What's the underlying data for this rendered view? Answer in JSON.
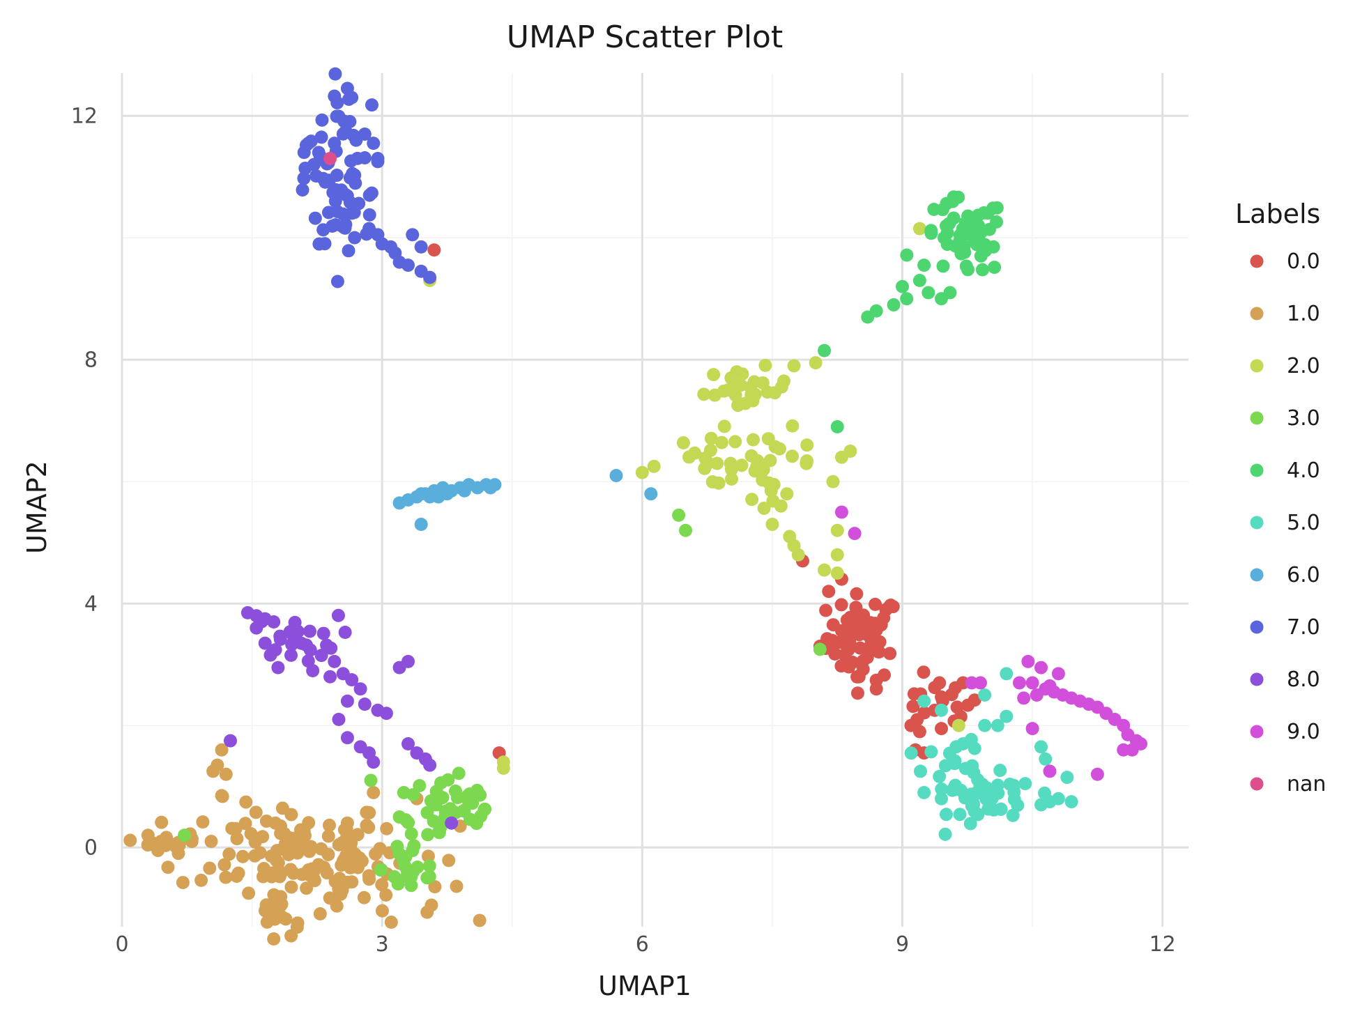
{
  "chart_data": {
    "type": "scatter",
    "title": "UMAP Scatter Plot",
    "xlabel": "UMAP1",
    "ylabel": "UMAP2",
    "xlim": [
      0,
      12.3
    ],
    "ylim": [
      -1.3,
      12.7
    ],
    "x_ticks": [
      "0",
      "3",
      "6",
      "9",
      "12"
    ],
    "y_ticks": [
      "0",
      "4",
      "8",
      "12"
    ],
    "grid": true,
    "legend": {
      "title": "Labels",
      "position": "right"
    },
    "series": [
      {
        "name": "0.0",
        "color": "#d9544d",
        "clusters": [
          {
            "cx": 8.55,
            "cy": 3.45,
            "rx": 0.3,
            "ry": 0.5,
            "n": 60
          },
          {
            "cx": 9.4,
            "cy": 2.35,
            "rx": 0.35,
            "ry": 0.3,
            "n": 18
          }
        ],
        "points": [
          [
            7.85,
            4.7
          ],
          [
            8.15,
            4.2
          ],
          [
            8.3,
            4.4
          ],
          [
            8.05,
            3.3
          ],
          [
            8.7,
            2.6
          ],
          [
            9.15,
            1.6
          ],
          [
            9.2,
            1.9
          ],
          [
            8.5,
            2.8
          ],
          [
            9.1,
            2.0
          ],
          [
            9.7,
            2.7
          ],
          [
            4.35,
            1.55
          ],
          [
            3.6,
            9.8
          ],
          [
            9.25,
            1.55
          ],
          [
            9.45,
            1.95
          ]
        ]
      },
      {
        "name": "1.0",
        "color": "#d4a155",
        "clusters": [
          {
            "cx": 1.9,
            "cy": 0.0,
            "rx": 0.9,
            "ry": 0.55,
            "n": 95
          },
          {
            "cx": 2.6,
            "cy": -0.5,
            "rx": 0.8,
            "ry": 0.5,
            "n": 50
          },
          {
            "cx": 1.8,
            "cy": -1.05,
            "rx": 0.25,
            "ry": 0.2,
            "n": 14
          },
          {
            "cx": 0.5,
            "cy": 0.1,
            "rx": 0.2,
            "ry": 0.1,
            "n": 12
          }
        ],
        "points": [
          [
            1.15,
            1.6
          ],
          [
            1.1,
            1.35
          ],
          [
            1.05,
            1.25
          ],
          [
            1.2,
            1.2
          ],
          [
            1.15,
            0.85
          ],
          [
            2.9,
            0.9
          ],
          [
            2.6,
            0.4
          ],
          [
            0.3,
            0.2
          ],
          [
            0.45,
            0.1
          ],
          [
            0.6,
            0.05
          ],
          [
            3.9,
            0.35
          ],
          [
            1.75,
            -1.5
          ],
          [
            1.95,
            -1.45
          ],
          [
            3.4,
            0.8
          ]
        ]
      },
      {
        "name": "2.0",
        "color": "#c5d854",
        "clusters": [
          {
            "cx": 7.2,
            "cy": 7.5,
            "rx": 0.35,
            "ry": 0.25,
            "n": 25
          },
          {
            "cx": 7.5,
            "cy": 6.3,
            "rx": 0.35,
            "ry": 0.4,
            "n": 22
          },
          {
            "cx": 6.7,
            "cy": 6.3,
            "rx": 0.5,
            "ry": 0.25,
            "n": 20
          }
        ],
        "points": [
          [
            6.0,
            6.15
          ],
          [
            7.6,
            5.6
          ],
          [
            7.5,
            5.3
          ],
          [
            7.7,
            5.1
          ],
          [
            7.75,
            4.95
          ],
          [
            7.8,
            4.8
          ],
          [
            8.25,
            4.8
          ],
          [
            8.25,
            4.5
          ],
          [
            8.1,
            4.55
          ],
          [
            8.25,
            5.2
          ],
          [
            8.3,
            6.4
          ],
          [
            8.4,
            6.5
          ],
          [
            8.2,
            6.0
          ],
          [
            7.9,
            6.6
          ],
          [
            8.0,
            7.95
          ],
          [
            7.75,
            7.9
          ],
          [
            9.2,
            10.15
          ],
          [
            9.65,
            2.0
          ],
          [
            3.55,
            9.3
          ],
          [
            4.4,
            1.4
          ],
          [
            4.4,
            1.3
          ]
        ]
      },
      {
        "name": "3.0",
        "color": "#7bd84f",
        "clusters": [
          {
            "cx": 3.8,
            "cy": 0.6,
            "rx": 0.45,
            "ry": 0.45,
            "n": 40
          },
          {
            "cx": 3.35,
            "cy": -0.35,
            "rx": 0.25,
            "ry": 0.35,
            "n": 18
          }
        ],
        "points": [
          [
            0.72,
            0.2
          ],
          [
            2.87,
            1.1
          ],
          [
            6.42,
            5.45
          ],
          [
            6.5,
            5.2
          ],
          [
            8.05,
            3.25
          ],
          [
            3.25,
            0.9
          ],
          [
            3.2,
            0.5
          ]
        ]
      },
      {
        "name": "4.0",
        "color": "#4dd670",
        "clusters": [
          {
            "cx": 9.7,
            "cy": 10.0,
            "rx": 0.35,
            "ry": 0.45,
            "n": 50
          }
        ],
        "points": [
          [
            9.05,
            9.0
          ],
          [
            9.0,
            9.2
          ],
          [
            9.2,
            9.3
          ],
          [
            9.3,
            9.1
          ],
          [
            9.25,
            9.55
          ],
          [
            8.6,
            8.7
          ],
          [
            8.7,
            8.8
          ],
          [
            8.9,
            8.9
          ],
          [
            8.1,
            8.15
          ],
          [
            8.25,
            6.9
          ],
          [
            9.45,
            9.0
          ],
          [
            9.55,
            9.1
          ],
          [
            10.05,
            9.85
          ]
        ]
      },
      {
        "name": "5.0",
        "color": "#55dcc0",
        "clusters": [
          {
            "cx": 10.05,
            "cy": 0.75,
            "rx": 0.35,
            "ry": 0.3,
            "n": 40
          },
          {
            "cx": 9.6,
            "cy": 1.3,
            "rx": 0.25,
            "ry": 0.35,
            "n": 22
          }
        ],
        "points": [
          [
            9.25,
            2.4
          ],
          [
            9.45,
            2.25
          ],
          [
            10.2,
            2.85
          ],
          [
            9.95,
            2.5
          ],
          [
            10.1,
            2.0
          ],
          [
            10.2,
            2.15
          ],
          [
            10.6,
            0.7
          ],
          [
            10.7,
            0.75
          ],
          [
            10.8,
            0.8
          ],
          [
            10.95,
            0.75
          ],
          [
            10.6,
            1.65
          ],
          [
            10.65,
            1.45
          ],
          [
            10.9,
            1.15
          ],
          [
            9.25,
            0.9
          ],
          [
            9.45,
            0.8
          ],
          [
            9.95,
            2.0
          ],
          [
            9.7,
            1.7
          ]
        ]
      },
      {
        "name": "6.0",
        "color": "#5aaedc",
        "clusters": [],
        "points": [
          [
            3.2,
            5.65
          ],
          [
            3.3,
            5.7
          ],
          [
            3.4,
            5.75
          ],
          [
            3.5,
            5.8
          ],
          [
            3.55,
            5.75
          ],
          [
            3.6,
            5.85
          ],
          [
            3.7,
            5.9
          ],
          [
            3.8,
            5.85
          ],
          [
            3.9,
            5.9
          ],
          [
            4.0,
            5.95
          ],
          [
            4.1,
            5.9
          ],
          [
            4.2,
            5.95
          ],
          [
            4.3,
            5.95
          ],
          [
            3.45,
            5.8
          ],
          [
            3.65,
            5.75
          ],
          [
            3.75,
            5.8
          ],
          [
            3.95,
            5.85
          ],
          [
            4.25,
            5.9
          ],
          [
            3.45,
            5.3
          ],
          [
            5.7,
            6.1
          ],
          [
            6.1,
            5.8
          ]
        ]
      },
      {
        "name": "7.0",
        "color": "#5a64dc",
        "clusters": [
          {
            "cx": 2.6,
            "cy": 10.55,
            "rx": 0.28,
            "ry": 0.45,
            "n": 38
          },
          {
            "cx": 2.55,
            "cy": 11.9,
            "rx": 0.15,
            "ry": 0.5,
            "n": 16
          },
          {
            "cx": 2.2,
            "cy": 11.1,
            "rx": 0.2,
            "ry": 0.4,
            "n": 14
          }
        ],
        "points": [
          [
            2.1,
            11.4
          ],
          [
            2.15,
            11.55
          ],
          [
            2.3,
            11.65
          ],
          [
            2.45,
            11.55
          ],
          [
            2.7,
            11.6
          ],
          [
            2.8,
            11.7
          ],
          [
            2.9,
            11.55
          ],
          [
            2.95,
            11.3
          ],
          [
            2.85,
            10.15
          ],
          [
            2.95,
            10.05
          ],
          [
            3.0,
            9.9
          ],
          [
            3.1,
            9.85
          ],
          [
            3.15,
            9.75
          ],
          [
            3.2,
            9.6
          ],
          [
            3.3,
            9.55
          ],
          [
            3.45,
            9.45
          ],
          [
            3.55,
            9.35
          ],
          [
            3.35,
            10.05
          ],
          [
            3.45,
            9.85
          ],
          [
            2.95,
            11.25
          ],
          [
            2.6,
            12.45
          ],
          [
            2.65,
            12.3
          ]
        ]
      },
      {
        "name": "8.0",
        "color": "#8b4fdc",
        "clusters": [
          {
            "cx": 2.0,
            "cy": 3.45,
            "rx": 0.35,
            "ry": 0.25,
            "n": 22
          }
        ],
        "points": [
          [
            1.45,
            3.85
          ],
          [
            1.55,
            3.8
          ],
          [
            1.65,
            3.75
          ],
          [
            1.75,
            3.7
          ],
          [
            1.55,
            3.6
          ],
          [
            1.65,
            3.35
          ],
          [
            1.8,
            2.95
          ],
          [
            2.3,
            3.15
          ],
          [
            2.45,
            3.05
          ],
          [
            2.55,
            2.85
          ],
          [
            2.65,
            2.75
          ],
          [
            2.75,
            2.6
          ],
          [
            2.4,
            2.8
          ],
          [
            2.2,
            2.9
          ],
          [
            2.6,
            2.4
          ],
          [
            2.8,
            2.35
          ],
          [
            2.95,
            2.25
          ],
          [
            3.05,
            2.2
          ],
          [
            2.5,
            2.1
          ],
          [
            2.6,
            1.8
          ],
          [
            2.75,
            1.65
          ],
          [
            2.85,
            1.55
          ],
          [
            3.3,
            1.7
          ],
          [
            3.4,
            1.55
          ],
          [
            3.5,
            1.45
          ],
          [
            3.55,
            1.35
          ],
          [
            3.2,
            2.95
          ],
          [
            3.3,
            3.05
          ],
          [
            1.25,
            1.75
          ],
          [
            3.8,
            0.4
          ],
          [
            2.9,
            1.4
          ]
        ]
      },
      {
        "name": "9.0",
        "color": "#d24fdc",
        "clusters": [],
        "points": [
          [
            10.45,
            3.05
          ],
          [
            10.6,
            2.95
          ],
          [
            10.8,
            2.85
          ],
          [
            10.5,
            2.7
          ],
          [
            10.65,
            2.6
          ],
          [
            10.75,
            2.55
          ],
          [
            10.85,
            2.5
          ],
          [
            10.95,
            2.45
          ],
          [
            11.05,
            2.4
          ],
          [
            11.15,
            2.35
          ],
          [
            11.25,
            2.3
          ],
          [
            11.35,
            2.2
          ],
          [
            11.45,
            2.1
          ],
          [
            11.55,
            2.0
          ],
          [
            11.6,
            1.85
          ],
          [
            11.7,
            1.75
          ],
          [
            11.75,
            1.7
          ],
          [
            11.65,
            1.6
          ],
          [
            11.55,
            1.6
          ],
          [
            10.35,
            2.7
          ],
          [
            10.4,
            2.45
          ],
          [
            10.55,
            2.5
          ],
          [
            10.7,
            2.65
          ],
          [
            10.5,
            1.95
          ],
          [
            9.8,
            2.7
          ],
          [
            9.9,
            2.7
          ],
          [
            10.7,
            1.25
          ],
          [
            11.25,
            1.2
          ],
          [
            8.3,
            5.5
          ],
          [
            8.45,
            5.15
          ]
        ]
      },
      {
        "name": "nan",
        "color": "#dc4f8c",
        "clusters": [],
        "points": [
          [
            2.4,
            11.3
          ]
        ]
      }
    ]
  }
}
